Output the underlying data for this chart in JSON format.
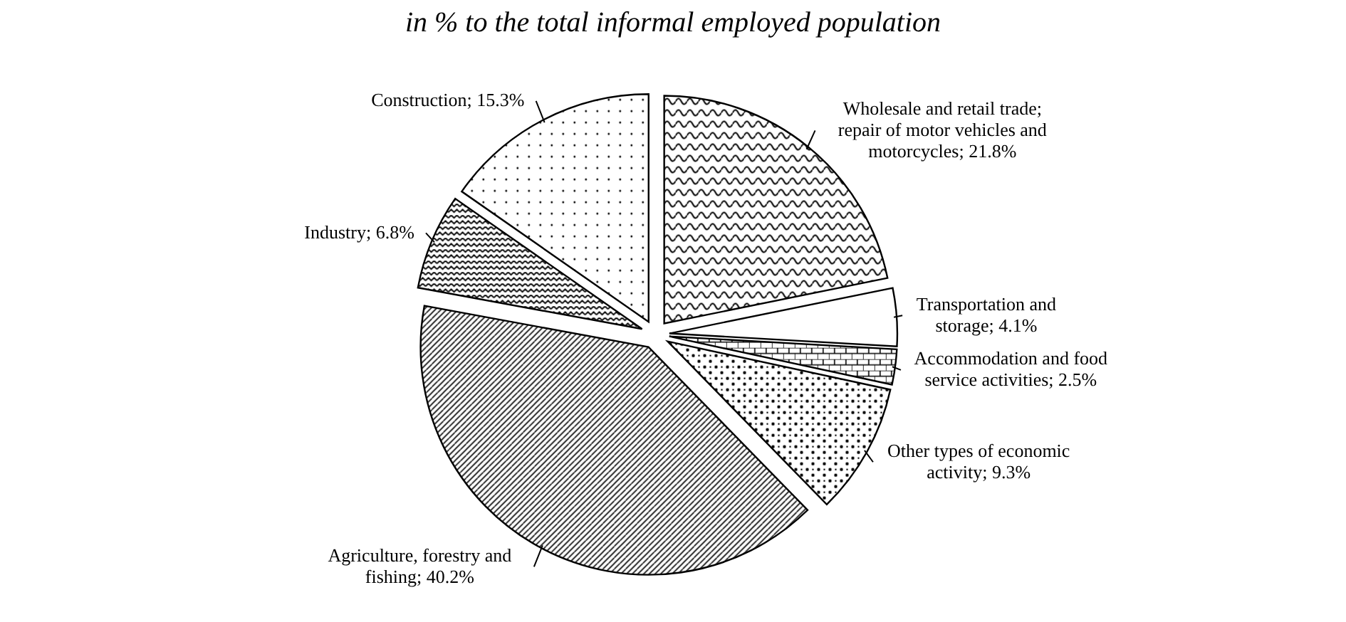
{
  "chart_data": {
    "type": "pie",
    "title": "in % to the total informal employed population",
    "categories": [
      "Wholesale and retail trade; repair of motor vehicles and motorcycles",
      "Transportation and storage",
      "Accommodation and food service activities",
      "Other types of economic activity",
      "Agriculture, forestry and fishing",
      "Industry",
      "Construction"
    ],
    "values": [
      21.8,
      4.1,
      2.5,
      9.3,
      40.2,
      6.8,
      15.3
    ],
    "value_labels": [
      "21.8%",
      "4.1%",
      "2.5%",
      "9.3%",
      "40.2%",
      "6.8%",
      "15.3%"
    ],
    "colors": [
      "#000000",
      "#000000",
      "#000000",
      "#000000",
      "#000000",
      "#000000",
      "#000000"
    ]
  }
}
